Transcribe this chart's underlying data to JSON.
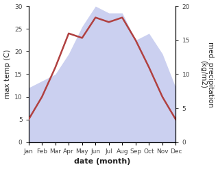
{
  "months": [
    "Jan",
    "Feb",
    "Mar",
    "Apr",
    "May",
    "Jun",
    "Jul",
    "Aug",
    "Sep",
    "Oct",
    "Nov",
    "Dec"
  ],
  "temperature": [
    5.0,
    10.0,
    16.5,
    24.0,
    23.0,
    27.5,
    26.5,
    27.5,
    22.5,
    16.5,
    10.0,
    5.0
  ],
  "precipitation": [
    8,
    9,
    10,
    13,
    17,
    20,
    19,
    19,
    15,
    16,
    13,
    8
  ],
  "temp_color": "#b04040",
  "precip_color": "#b0b8e8",
  "precip_alpha": 0.65,
  "temp_ylim": [
    0,
    30
  ],
  "temp_yticks": [
    0,
    5,
    10,
    15,
    20,
    25,
    30
  ],
  "precip_ylim": [
    0,
    20
  ],
  "precip_yticks": [
    0,
    5,
    10,
    15,
    20
  ],
  "xlabel": "date (month)",
  "ylabel_left": "max temp (C)",
  "ylabel_right": "med. precipitation\n(kg/m2)",
  "background_color": "#ffffff",
  "tick_label_color": "#444444",
  "axis_label_color": "#222222",
  "xlabel_fontsize": 8,
  "ylabel_fontsize": 7.5,
  "tick_fontsize": 6.5,
  "line_width": 1.8
}
